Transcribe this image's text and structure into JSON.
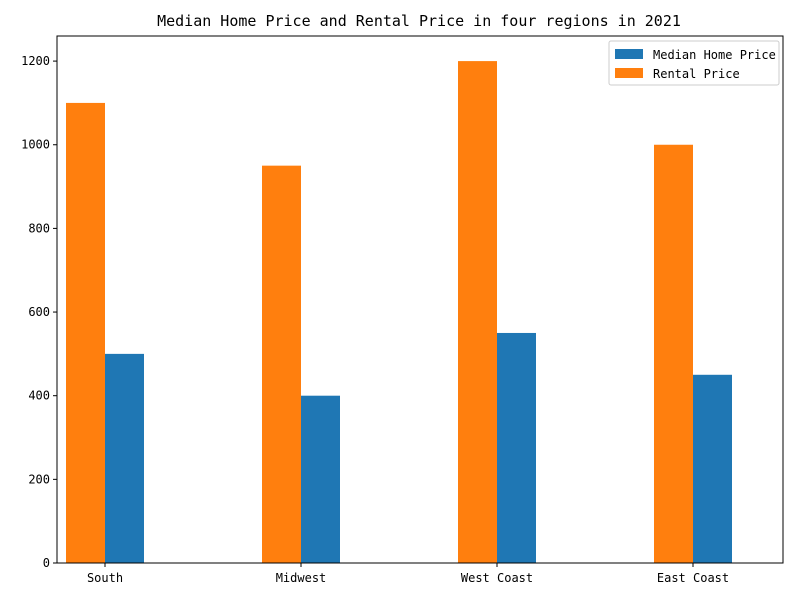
{
  "chart_data": {
    "type": "bar",
    "title": "Median Home Price and Rental Price in four regions in 2021",
    "xlabel": "",
    "ylabel": "",
    "categories": [
      "South",
      "Midwest",
      "West Coast",
      "East Coast"
    ],
    "series": [
      {
        "name": "Rental Price",
        "values": [
          1100,
          950,
          1200,
          1000
        ],
        "color": "#ff7f0e"
      },
      {
        "name": "Median Home Price",
        "values": [
          500,
          400,
          550,
          450
        ],
        "color": "#1f77b4"
      }
    ],
    "legend_order": [
      "Median Home Price",
      "Rental Price"
    ],
    "ylim": [
      0,
      1260
    ],
    "yticks": [
      0,
      200,
      400,
      600,
      800,
      1000,
      1200
    ],
    "grid": false,
    "legend_position": "top-right"
  }
}
